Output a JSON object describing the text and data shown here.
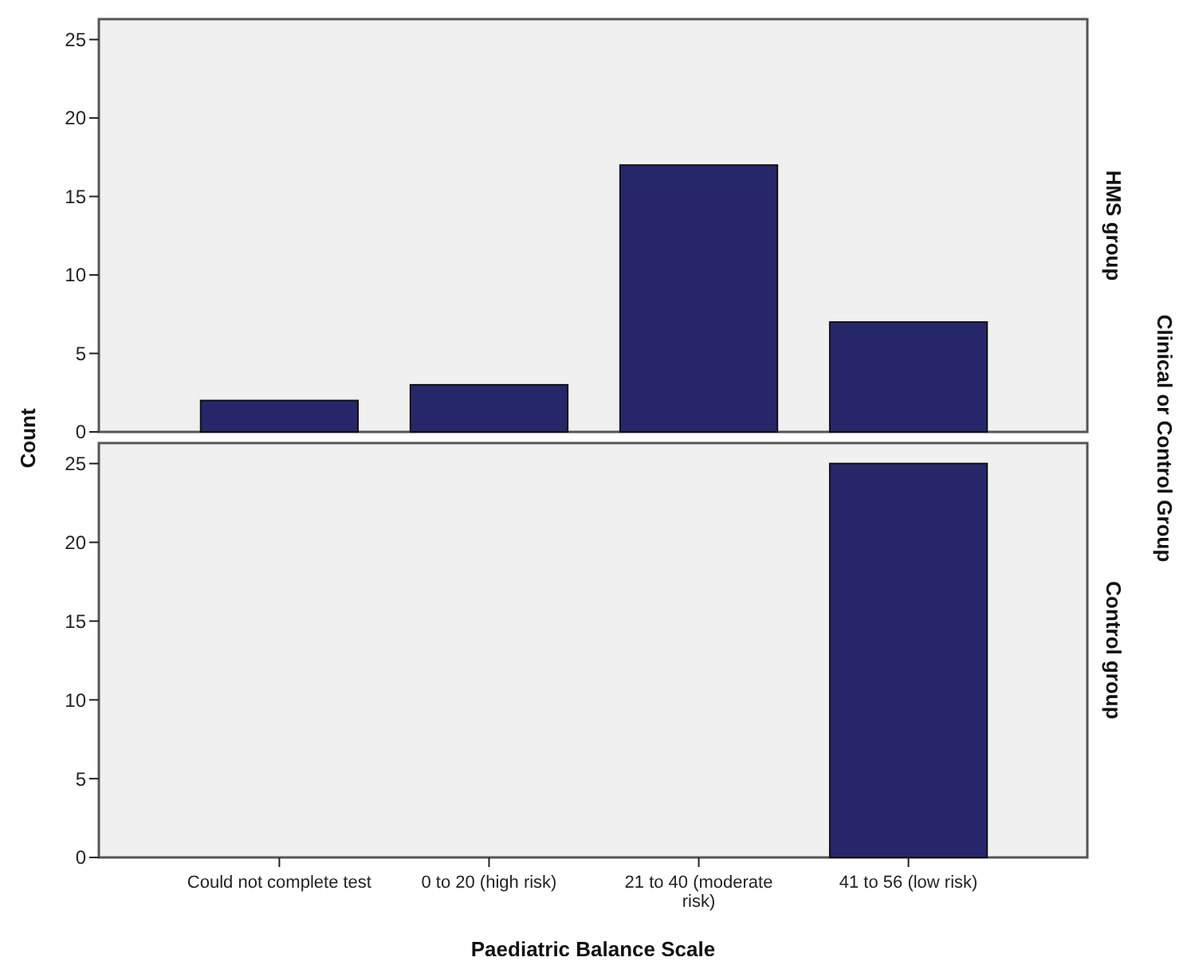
{
  "chart_data": [
    {
      "type": "bar",
      "categories": [
        null,
        null,
        null,
        null
      ],
      "values": [
        2,
        3,
        17,
        7
      ],
      "color": "#26276b",
      "ylim": [
        0,
        26.3
      ],
      "yticks": [
        0,
        5,
        10,
        15,
        20,
        25
      ],
      "tick_labels": "y",
      "ylabel": "Count",
      "y2label": "Clinical or Control Group",
      "annotations": [
        "HMS group"
      ]
    },
    {
      "type": "bar",
      "categories": [
        "Could not complete test",
        "0 to 20 (high risk)",
        "21 to 40 (moderate risk)",
        "41 to 56 (low risk)"
      ],
      "values": [
        0,
        0,
        0,
        25
      ],
      "color": "#26276b",
      "ylim": [
        0,
        26.3
      ],
      "yticks": [
        0,
        5,
        10,
        15,
        20,
        25
      ],
      "xlabel": "Paediatric Balance Scale",
      "annotations": [
        "Control group"
      ]
    }
  ]
}
